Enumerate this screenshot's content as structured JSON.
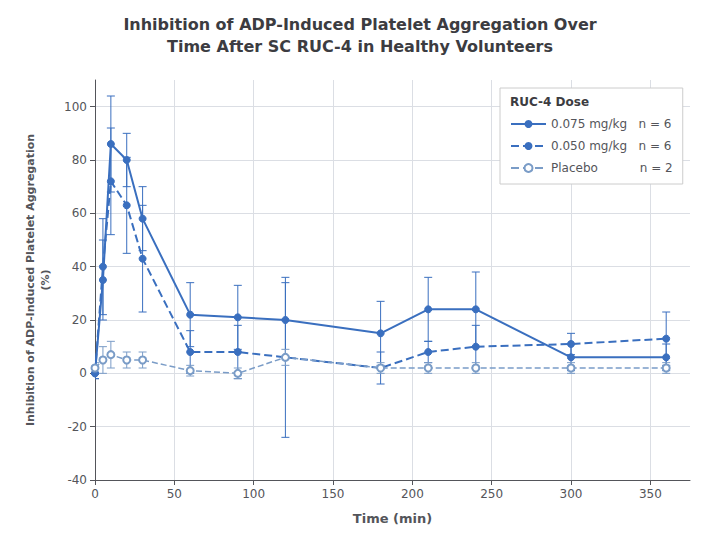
{
  "chart_data": {
    "type": "line",
    "title": "Inhibition of ADP-Induced Platelet Aggregation Over\nTime After SC RUC-4 in Healthy Volunteers",
    "xlabel": "Time (min)",
    "ylabel": "Inhibition of ADP-Induced Platelet Aggregation\n(%)",
    "legend_title": "RUC-4 Dose",
    "x": [
      0,
      5,
      10,
      20,
      30,
      60,
      90,
      120,
      180,
      210,
      240,
      300,
      360
    ],
    "series": [
      {
        "name": "0.075 mg/kg   n = 6",
        "color": "#3a6fbf",
        "line_style": "solid",
        "marker": "circle",
        "values": [
          0,
          35,
          86,
          80,
          58,
          22,
          21,
          20,
          15,
          24,
          24,
          6,
          6
        ],
        "errors": [
          2,
          15,
          18,
          10,
          12,
          12,
          12,
          14,
          12,
          12,
          14,
          5,
          5
        ]
      },
      {
        "name": "0.050 mg/kg   n = 6",
        "color": "#3a6fbf",
        "line_style": "dashed",
        "marker": "circle",
        "values": [
          0,
          40,
          72,
          63,
          43,
          8,
          8,
          6,
          2,
          8,
          10,
          11,
          13
        ],
        "errors": [
          2,
          18,
          20,
          18,
          20,
          8,
          10,
          30,
          6,
          4,
          8,
          4,
          10
        ]
      },
      {
        "name": "Placebo           n = 2",
        "color": "#7a9cc7",
        "line_style": "dashed",
        "marker": "open_circle",
        "values": [
          2,
          5,
          7,
          5,
          5,
          1,
          0,
          6,
          2,
          2,
          2,
          2,
          2
        ],
        "errors": [
          2,
          5,
          5,
          3,
          3,
          2,
          2,
          3,
          2,
          2,
          2,
          2,
          2
        ]
      }
    ],
    "xlim": [
      0,
      375
    ],
    "ylim": [
      -40,
      110
    ],
    "xticks": [
      0,
      50,
      100,
      150,
      200,
      250,
      300,
      350
    ],
    "yticks": [
      -40,
      -20,
      0,
      20,
      40,
      60,
      80,
      100
    ],
    "grid": true,
    "legend": "upper right"
  }
}
